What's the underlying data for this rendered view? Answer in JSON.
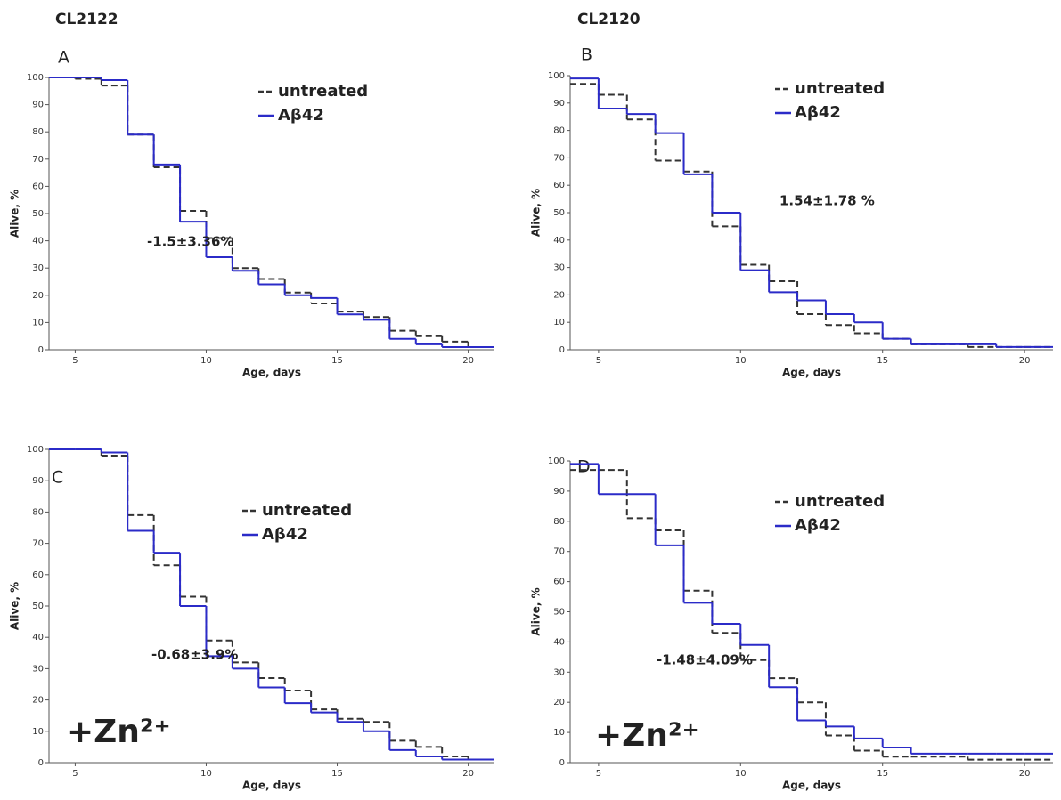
{
  "headers": [
    "CL2122",
    "CL2120"
  ],
  "chart_data": [
    {
      "type": "line",
      "step": "post",
      "title": "A",
      "annotation": "-1.5±3.36%",
      "xlabel": "Age, days",
      "ylabel": "Alive, %",
      "x": [
        4,
        5,
        6,
        7,
        8,
        9,
        10,
        11,
        12,
        13,
        14,
        15,
        16,
        17,
        18,
        19,
        20
      ],
      "series": [
        {
          "name": "untreated",
          "color": "#333333",
          "dashed": true,
          "values": [
            100,
            99.5,
            97,
            79,
            67,
            51,
            41,
            30,
            26,
            21,
            17,
            14,
            12,
            7,
            5,
            3,
            1
          ]
        },
        {
          "name": "Aβ42",
          "color": "#2b2bc8",
          "dashed": false,
          "values": [
            100,
            100,
            99,
            79,
            68,
            47,
            34,
            29,
            24,
            20,
            19,
            13,
            11,
            4,
            2,
            1,
            1
          ]
        }
      ],
      "xlim": [
        4,
        21
      ],
      "ylim": [
        0,
        100
      ],
      "xticks": [
        5,
        10,
        15,
        20
      ],
      "yticks": [
        0,
        10,
        20,
        30,
        40,
        50,
        60,
        70,
        80,
        90,
        100
      ]
    },
    {
      "type": "line",
      "step": "post",
      "title": "B",
      "annotation": "1.54±1.78 %",
      "xlabel": "Age, days",
      "ylabel": "Alive, %",
      "x": [
        4,
        5,
        6,
        7,
        8,
        9,
        10,
        11,
        12,
        13,
        14,
        15,
        16,
        17,
        18,
        19,
        20
      ],
      "series": [
        {
          "name": "untreated",
          "color": "#333333",
          "dashed": true,
          "values": [
            97,
            93,
            84,
            69,
            65,
            45,
            31,
            25,
            13,
            9,
            6,
            4,
            2,
            2,
            1,
            1,
            1
          ]
        },
        {
          "name": "Aβ42",
          "color": "#2b2bc8",
          "dashed": false,
          "values": [
            99,
            88,
            86,
            79,
            64,
            50,
            29,
            21,
            18,
            13,
            10,
            4,
            2,
            2,
            2,
            1,
            1
          ]
        }
      ],
      "xlim": [
        4,
        21
      ],
      "ylim": [
        0,
        100
      ],
      "xticks": [
        5,
        10,
        15,
        20
      ],
      "yticks": [
        0,
        10,
        20,
        30,
        40,
        50,
        60,
        70,
        80,
        90,
        100
      ]
    },
    {
      "type": "line",
      "step": "post",
      "title": "C",
      "annotation": "-0.68±3.9%",
      "condition": "+Zn²⁺",
      "xlabel": "Age, days",
      "ylabel": "Alive, %",
      "x": [
        4,
        5,
        6,
        7,
        8,
        9,
        10,
        11,
        12,
        13,
        14,
        15,
        16,
        17,
        18,
        19,
        20
      ],
      "series": [
        {
          "name": "untreated",
          "color": "#333333",
          "dashed": true,
          "values": [
            100,
            100,
            98,
            79,
            63,
            53,
            39,
            32,
            27,
            23,
            17,
            14,
            13,
            7,
            5,
            2,
            1
          ]
        },
        {
          "name": "Aβ42",
          "color": "#2b2bc8",
          "dashed": false,
          "values": [
            100,
            100,
            99,
            74,
            67,
            50,
            34,
            30,
            24,
            19,
            16,
            13,
            10,
            4,
            2,
            1,
            1
          ]
        }
      ],
      "xlim": [
        4,
        21
      ],
      "ylim": [
        0,
        100
      ],
      "xticks": [
        5,
        10,
        15,
        20
      ],
      "yticks": [
        0,
        10,
        20,
        30,
        40,
        50,
        60,
        70,
        80,
        90,
        100
      ]
    },
    {
      "type": "line",
      "step": "post",
      "title": "D",
      "annotation": "-1.48±4.09%",
      "condition": "+Zn²⁺",
      "xlabel": "Age, days",
      "ylabel": "Alive, %",
      "x": [
        4,
        5,
        6,
        7,
        8,
        9,
        10,
        11,
        12,
        13,
        14,
        15,
        16,
        17,
        18,
        19,
        20
      ],
      "series": [
        {
          "name": "untreated",
          "color": "#333333",
          "dashed": true,
          "values": [
            97,
            97,
            81,
            77,
            57,
            43,
            34,
            28,
            20,
            9,
            4,
            2,
            2,
            2,
            1,
            1,
            1
          ]
        },
        {
          "name": "Aβ42",
          "color": "#2b2bc8",
          "dashed": false,
          "values": [
            99,
            89,
            89,
            72,
            53,
            46,
            39,
            25,
            14,
            12,
            8,
            5,
            3,
            3,
            3,
            3,
            3
          ]
        }
      ],
      "xlim": [
        4,
        21
      ],
      "ylim": [
        0,
        100
      ],
      "xticks": [
        5,
        10,
        15,
        20
      ],
      "yticks": [
        0,
        10,
        20,
        30,
        40,
        50,
        60,
        70,
        80,
        90,
        100
      ]
    }
  ]
}
